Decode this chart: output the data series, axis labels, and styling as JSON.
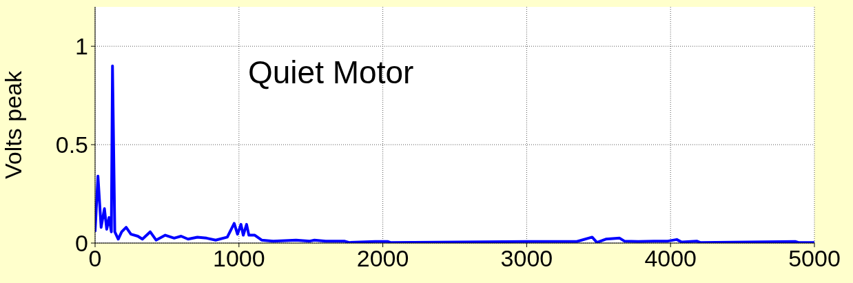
{
  "chart_data": {
    "type": "line",
    "ylabel": "Volts peak",
    "annotations": [
      "Quiet Motor"
    ],
    "xlim": [
      0,
      5000
    ],
    "xticks": [
      0,
      1000,
      2000,
      3000,
      4000,
      5000
    ],
    "ylim": [
      0,
      1.2
    ],
    "yticks": [
      0,
      0.5,
      1
    ],
    "grid": true,
    "legend": false,
    "marker": "none",
    "line_style": "solid",
    "series": [
      {
        "color": "#0000ff",
        "x": [
          0,
          20,
          42,
          65,
          81,
          97,
          113,
          121,
          137,
          161,
          185,
          216,
          249,
          297,
          329,
          383,
          424,
          488,
          550,
          598,
          646,
          711,
          775,
          838,
          919,
          967,
          990,
          1014,
          1030,
          1053,
          1069,
          1110,
          1158,
          1238,
          1397,
          1493,
          1525,
          1603,
          1732,
          1766,
          1947,
          2033,
          2053,
          3038,
          3349,
          3455,
          3488,
          3550,
          3646,
          3679,
          3775,
          3885,
          3981,
          4043,
          4077,
          4182,
          4206,
          4866,
          4890,
          4986,
          5000
        ],
        "values": [
          0.057,
          0.34,
          0.08,
          0.175,
          0.07,
          0.13,
          0.057,
          0.9,
          0.057,
          0.02,
          0.057,
          0.08,
          0.045,
          0.035,
          0.02,
          0.057,
          0.015,
          0.04,
          0.025,
          0.035,
          0.02,
          0.03,
          0.025,
          0.015,
          0.03,
          0.1,
          0.045,
          0.095,
          0.04,
          0.095,
          0.04,
          0.04,
          0.015,
          0.01,
          0.015,
          0.01,
          0.015,
          0.01,
          0.01,
          0.003,
          0.008,
          0.008,
          0.003,
          0.008,
          0.008,
          0.03,
          0.003,
          0.02,
          0.025,
          0.01,
          0.008,
          0.01,
          0.01,
          0.018,
          0.005,
          0.01,
          0.003,
          0.008,
          0.003,
          0.003,
          0.003
        ]
      }
    ]
  }
}
